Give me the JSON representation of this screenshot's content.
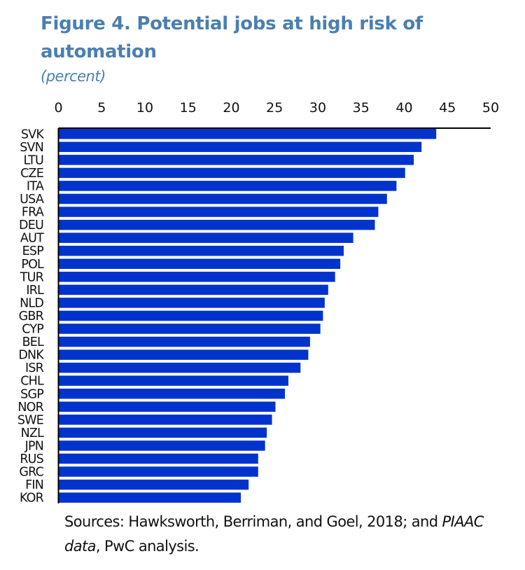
{
  "figure": {
    "title": "Figure 4. Potential jobs at high risk of automation",
    "subtitle": "(percent)",
    "source_prefix": "Sources: Hawksworth, Berriman, and Goel, 2018; and ",
    "source_italic": "PIAAC data",
    "source_suffix": ", PwC analysis."
  },
  "colors": {
    "bar": "#0033cc",
    "title": "#4a7fb0",
    "axis": "#000000"
  },
  "chart_data": {
    "type": "bar",
    "orientation": "horizontal",
    "title": "Figure 4. Potential jobs at high risk of automation",
    "subtitle": "(percent)",
    "xlabel": "",
    "ylabel": "",
    "xlim": [
      0,
      50
    ],
    "xticks": [
      0,
      5,
      10,
      15,
      20,
      25,
      30,
      35,
      40,
      45,
      50
    ],
    "x_axis_position": "top",
    "grid": false,
    "legend": "none",
    "categories": [
      "SVK",
      "SVN",
      "LTU",
      "CZE",
      "ITA",
      "USA",
      "FRA",
      "DEU",
      "AUT",
      "ESP",
      "POL",
      "TUR",
      "IRL",
      "NLD",
      "GBR",
      "CYP",
      "BEL",
      "DNK",
      "ISR",
      "CHL",
      "SGP",
      "NOR",
      "SWE",
      "NZL",
      "JPN",
      "RUS",
      "GRC",
      "FIN",
      "KOR"
    ],
    "values": [
      43.7,
      42.0,
      41.1,
      40.1,
      39.1,
      38.0,
      37.0,
      36.6,
      34.1,
      33.0,
      32.6,
      32.0,
      31.2,
      30.8,
      30.6,
      30.3,
      29.1,
      28.9,
      28.0,
      26.6,
      26.2,
      25.1,
      24.7,
      24.1,
      23.9,
      23.1,
      23.1,
      22.0,
      21.1
    ],
    "source": "Sources: Hawksworth, Berriman, and Goel, 2018; and PIAAC data, PwC analysis."
  }
}
